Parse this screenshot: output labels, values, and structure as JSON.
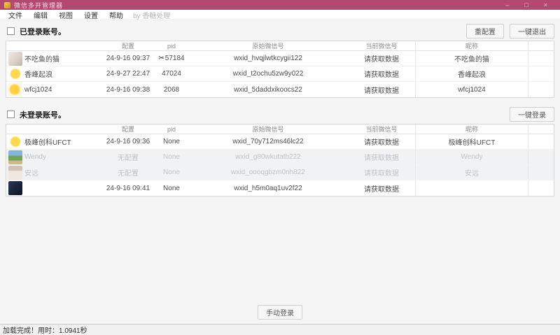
{
  "colors": {
    "titlebar": "#b3496f"
  },
  "titlebar": {
    "title": "微信多开管理器",
    "minimize": "–",
    "maximize": "□",
    "close": "×"
  },
  "menu": {
    "items": [
      "文件",
      "编辑",
      "视图",
      "设置",
      "帮助"
    ],
    "credit": "by 香糖处理"
  },
  "headers": {
    "config": "配置",
    "pid": "pid",
    "original": "原始微信号",
    "current": "当前微信号",
    "remark": "昵称"
  },
  "logged": {
    "label": "已登录账号。",
    "btn_reconfig": "重配置",
    "btn_logout_all": "一键退出",
    "rows": [
      {
        "nickname": "不吃鱼的猫",
        "config": "24-9-16 09:37",
        "pid_icon": "✂",
        "pid": "57184",
        "original": "wxid_hvqjlwtkcygii122",
        "current": "请获取数据",
        "remark": "不吃鱼的猫"
      },
      {
        "nickname": "香峰起浪",
        "config": "24-9-27 22:47",
        "pid": "47024",
        "original": "wxid_t2ochu5zw9y022",
        "current": "请获取数据",
        "remark": "香峰起浪"
      },
      {
        "nickname": "wfcj1024",
        "config": "24-9-16 09:38",
        "pid": "2068",
        "original": "wxid_5daddxikoocs22",
        "current": "请获取数据",
        "remark": "wfcj1024"
      }
    ]
  },
  "unlogged": {
    "label": "未登录账号。",
    "btn_login_all": "一键登录",
    "rows": [
      {
        "nickname": "极峰创科UFCT",
        "config": "24-9-16 09:36",
        "pid": "None",
        "original": "wxid_70y712ms46lc22",
        "current": "请获取数据",
        "remark": "极峰创科UFCT"
      },
      {
        "nickname": "Wendy",
        "config": "无配置",
        "pid": "None",
        "original": "wxid_g80wkutatb222",
        "current": "请获取数据",
        "remark": "Wendy"
      },
      {
        "nickname": "安远",
        "config": "无配置",
        "pid": "None",
        "original": "wxid_oooqgbzm0nh822",
        "current": "请获取数据",
        "remark": "安远"
      },
      {
        "nickname": "",
        "config": "24-9-16 09:41",
        "pid": "None",
        "original": "wxid_h5m0aq1uv2f22",
        "current": "请获取数据",
        "remark": ""
      }
    ]
  },
  "footer": {
    "manual_login": "手动登录"
  },
  "status": {
    "text": "加载完成！用时：1.0941秒"
  }
}
